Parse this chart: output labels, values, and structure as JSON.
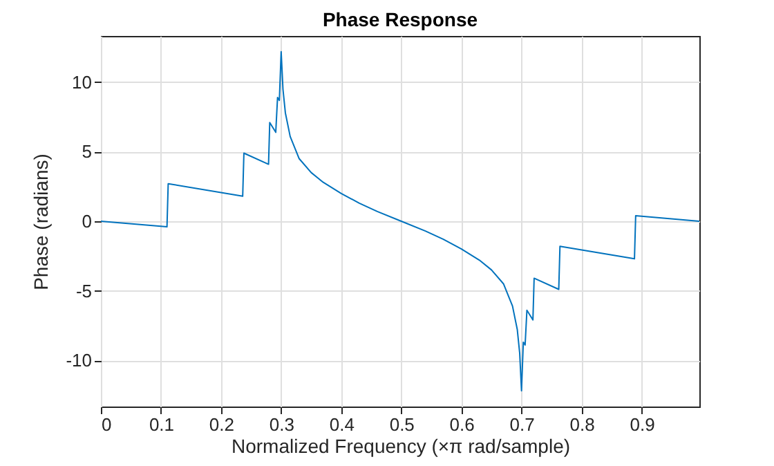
{
  "chart_data": {
    "type": "line",
    "title": "Phase Response",
    "xlabel": "Normalized Frequency (×π rad/sample)",
    "ylabel": "Phase (radians)",
    "x": [
      0,
      0.11,
      0.112,
      0.236,
      0.238,
      0.279,
      0.281,
      0.291,
      0.294,
      0.297,
      0.3,
      0.303,
      0.307,
      0.315,
      0.33,
      0.35,
      0.37,
      0.4,
      0.43,
      0.46,
      0.5,
      0.54,
      0.57,
      0.6,
      0.63,
      0.65,
      0.67,
      0.685,
      0.693,
      0.697,
      0.7,
      0.703,
      0.706,
      0.709,
      0.719,
      0.721,
      0.762,
      0.764,
      0.888,
      0.89,
      0.996
    ],
    "series": [
      {
        "color": "#0072bd",
        "values": [
          0,
          -0.4,
          2.7,
          1.8,
          4.9,
          4.1,
          7.1,
          6.4,
          8.9,
          8.7,
          12.2,
          9.5,
          7.8,
          6.1,
          4.5,
          3.5,
          2.8,
          2.0,
          1.3,
          0.7,
          0,
          -0.7,
          -1.3,
          -2.0,
          -2.8,
          -3.5,
          -4.5,
          -6.1,
          -7.8,
          -9.5,
          -12.2,
          -8.7,
          -8.9,
          -6.4,
          -7.1,
          -4.1,
          -4.9,
          -1.8,
          -2.7,
          0.4,
          0
        ]
      }
    ],
    "xlim": [
      0,
      0.996
    ],
    "xticks": [
      0,
      0.1,
      0.2,
      0.3,
      0.4,
      0.5,
      0.6,
      0.7,
      0.8,
      0.9
    ],
    "ylim": [
      -13.33,
      13.33
    ],
    "yticks": [
      -10,
      -5,
      0,
      5,
      10
    ],
    "grid": true
  }
}
